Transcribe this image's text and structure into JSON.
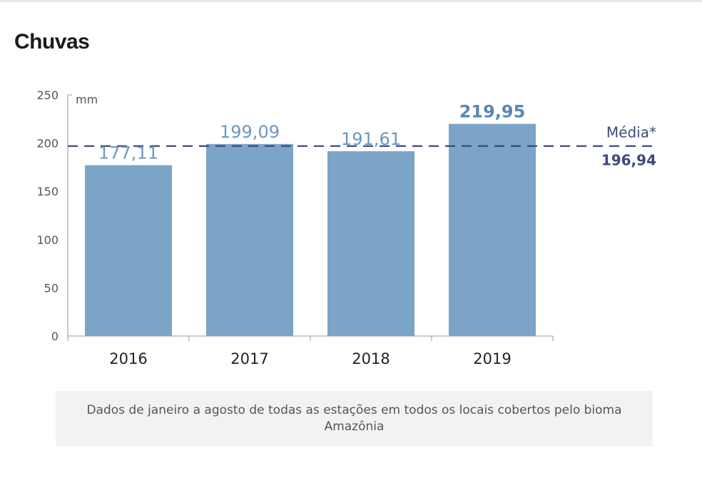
{
  "title": "Chuvas",
  "note": "Dados de janeiro a agosto de todas as estações em todos os locais cobertos pelo bioma Amazônia",
  "colors": {
    "bar": "#7ba4c7",
    "bar_label": "#6b97c0",
    "bar_label_highlight": "#5b87b2",
    "average_line": "#3d4a7a",
    "axis": "#999999",
    "note_bg": "#f2f2f2"
  },
  "chart_data": {
    "type": "bar",
    "unit_label": "mm",
    "categories": [
      "2016",
      "2017",
      "2018",
      "2019"
    ],
    "values": [
      177.11,
      199.09,
      191.61,
      219.95
    ],
    "value_labels": [
      "177,11",
      "199,09",
      "191,61",
      "219,95"
    ],
    "highlight_index": 3,
    "ylim": [
      0,
      250
    ],
    "yticks": [
      "0",
      "50",
      "100",
      "150",
      "200",
      "250"
    ],
    "ytick_values": [
      0,
      50,
      100,
      150,
      200,
      250
    ],
    "grid": false,
    "average": {
      "value": 196.94,
      "label": "Média*",
      "value_label": "196,94"
    }
  }
}
